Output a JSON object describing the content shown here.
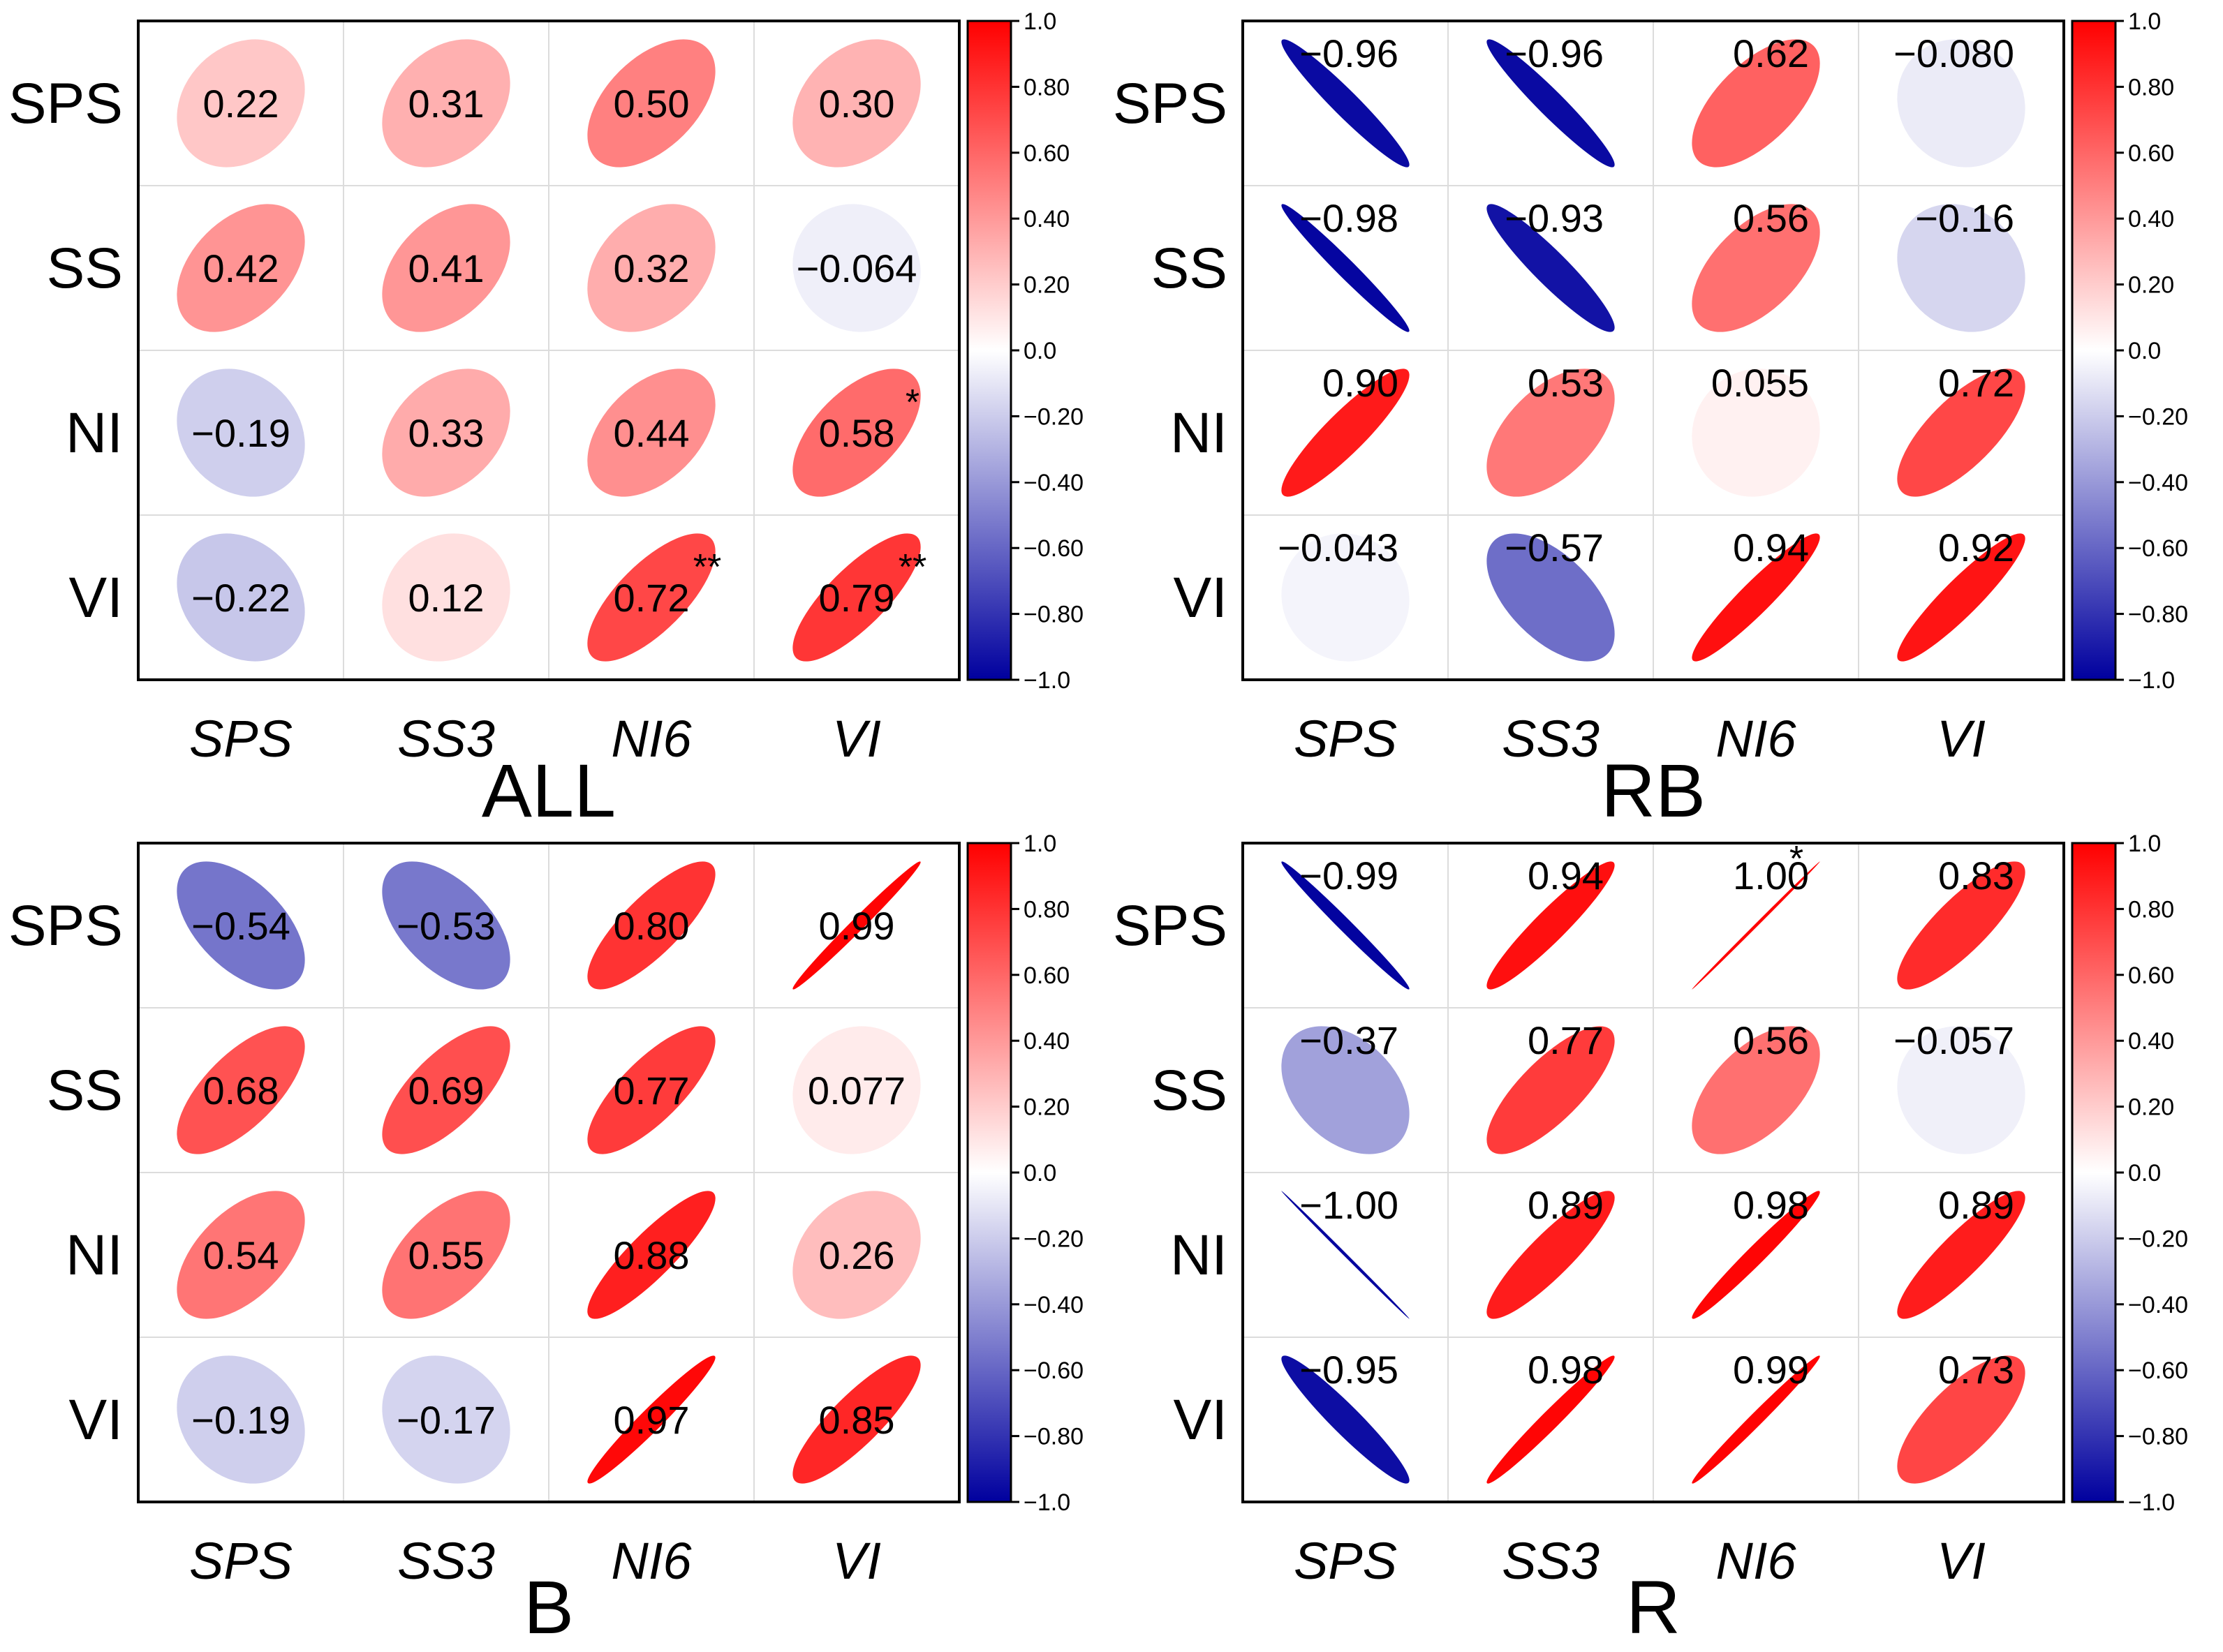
{
  "figure": {
    "colormap": {
      "negative": "#00009e",
      "zero": "#ffffff",
      "positive": "#ff0000"
    }
  },
  "chart_data": [
    {
      "type": "heatmap",
      "title": "ALL",
      "row_labels": [
        "SPS",
        "SS",
        "NI",
        "VI"
      ],
      "col_labels": [
        "SPS",
        "SS3",
        "NI6",
        "VI"
      ],
      "values": [
        [
          0.22,
          0.31,
          0.5,
          0.3
        ],
        [
          0.42,
          0.41,
          0.32,
          -0.064
        ],
        [
          -0.19,
          0.33,
          0.44,
          0.58
        ],
        [
          -0.22,
          0.12,
          0.72,
          0.79
        ]
      ],
      "value_labels": [
        [
          "0.22",
          "0.31",
          "0.50",
          "0.30"
        ],
        [
          "0.42",
          "0.41",
          "0.32",
          "−0.064"
        ],
        [
          "−0.19",
          "0.33",
          "0.44",
          "0.58"
        ],
        [
          "−0.22",
          "0.12",
          "0.72",
          "0.79"
        ]
      ],
      "significance": [
        [
          "",
          "",
          "",
          ""
        ],
        [
          "",
          "",
          "",
          ""
        ],
        [
          "",
          "",
          "",
          "*"
        ],
        [
          "",
          "",
          "**",
          "**"
        ]
      ],
      "label_position": "center",
      "colorbar": {
        "range": [
          -1.0,
          1.0
        ],
        "ticks": [
          "1.0",
          "0.80",
          "0.60",
          "0.40",
          "0.20",
          "0.0",
          "−0.20",
          "−0.40",
          "−0.60",
          "−0.80",
          "−1.0"
        ]
      }
    },
    {
      "type": "heatmap",
      "title": "RB",
      "row_labels": [
        "SPS",
        "SS",
        "NI",
        "VI"
      ],
      "col_labels": [
        "SPS",
        "SS3",
        "NI6",
        "VI"
      ],
      "values": [
        [
          -0.96,
          -0.96,
          0.62,
          -0.08
        ],
        [
          -0.98,
          -0.93,
          0.56,
          -0.16
        ],
        [
          0.9,
          0.53,
          0.055,
          0.72
        ],
        [
          -0.043,
          -0.57,
          0.94,
          0.92
        ]
      ],
      "value_labels": [
        [
          "−0.96",
          "−0.96",
          "0.62",
          "−0.080"
        ],
        [
          "−0.98",
          "−0.93",
          "0.56",
          "−0.16"
        ],
        [
          "0.90",
          "0.53",
          "0.055",
          "0.72"
        ],
        [
          "−0.043",
          "−0.57",
          "0.94",
          "0.92"
        ]
      ],
      "significance": [
        [
          "",
          "",
          "",
          ""
        ],
        [
          "",
          "",
          "",
          ""
        ],
        [
          "",
          "",
          "",
          ""
        ],
        [
          "",
          "",
          "",
          ""
        ]
      ],
      "label_position": "top-right",
      "colorbar": {
        "range": [
          -1.0,
          1.0
        ],
        "ticks": [
          "1.0",
          "0.80",
          "0.60",
          "0.40",
          "0.20",
          "0.0",
          "−0.20",
          "−0.40",
          "−0.60",
          "−0.80",
          "−1.0"
        ]
      }
    },
    {
      "type": "heatmap",
      "title": "B",
      "row_labels": [
        "SPS",
        "SS",
        "NI",
        "VI"
      ],
      "col_labels": [
        "SPS",
        "SS3",
        "NI6",
        "VI"
      ],
      "values": [
        [
          -0.54,
          -0.53,
          0.8,
          0.99
        ],
        [
          0.68,
          0.69,
          0.77,
          0.077
        ],
        [
          0.54,
          0.55,
          0.88,
          0.26
        ],
        [
          -0.19,
          -0.17,
          0.97,
          0.85
        ]
      ],
      "value_labels": [
        [
          "−0.54",
          "−0.53",
          "0.80",
          "0.99"
        ],
        [
          "0.68",
          "0.69",
          "0.77",
          "0.077"
        ],
        [
          "0.54",
          "0.55",
          "0.88",
          "0.26"
        ],
        [
          "−0.19",
          "−0.17",
          "0.97",
          "0.85"
        ]
      ],
      "significance": [
        [
          "",
          "",
          "",
          ""
        ],
        [
          "",
          "",
          "",
          ""
        ],
        [
          "",
          "",
          "",
          ""
        ],
        [
          "",
          "",
          "",
          ""
        ]
      ],
      "label_position": "center",
      "colorbar": {
        "range": [
          -1.0,
          1.0
        ],
        "ticks": [
          "1.0",
          "0.80",
          "0.60",
          "0.40",
          "0.20",
          "0.0",
          "−0.20",
          "−0.40",
          "−0.60",
          "−0.80",
          "−1.0"
        ]
      }
    },
    {
      "type": "heatmap",
      "title": "R",
      "row_labels": [
        "SPS",
        "SS",
        "NI",
        "VI"
      ],
      "col_labels": [
        "SPS",
        "SS3",
        "NI6",
        "VI"
      ],
      "values": [
        [
          -0.99,
          0.94,
          1.0,
          0.83
        ],
        [
          -0.37,
          0.77,
          0.56,
          -0.057
        ],
        [
          -1.0,
          0.89,
          0.98,
          0.89
        ],
        [
          -0.95,
          0.98,
          0.99,
          0.73
        ]
      ],
      "value_labels": [
        [
          "−0.99",
          "0.94",
          "1.00",
          "0.83"
        ],
        [
          "−0.37",
          "0.77",
          "0.56",
          "−0.057"
        ],
        [
          "−1.00",
          "0.89",
          "0.98",
          "0.89"
        ],
        [
          "−0.95",
          "0.98",
          "0.99",
          "0.73"
        ]
      ],
      "significance": [
        [
          "",
          "",
          "*",
          ""
        ],
        [
          "",
          "",
          "",
          ""
        ],
        [
          "",
          "",
          "",
          ""
        ],
        [
          "",
          "",
          "",
          ""
        ]
      ],
      "label_position": "top-right",
      "colorbar": {
        "range": [
          -1.0,
          1.0
        ],
        "ticks": [
          "1.0",
          "0.80",
          "0.60",
          "0.40",
          "0.20",
          "0.0",
          "−0.20",
          "−0.40",
          "−0.60",
          "−0.80",
          "−1.0"
        ]
      }
    }
  ]
}
